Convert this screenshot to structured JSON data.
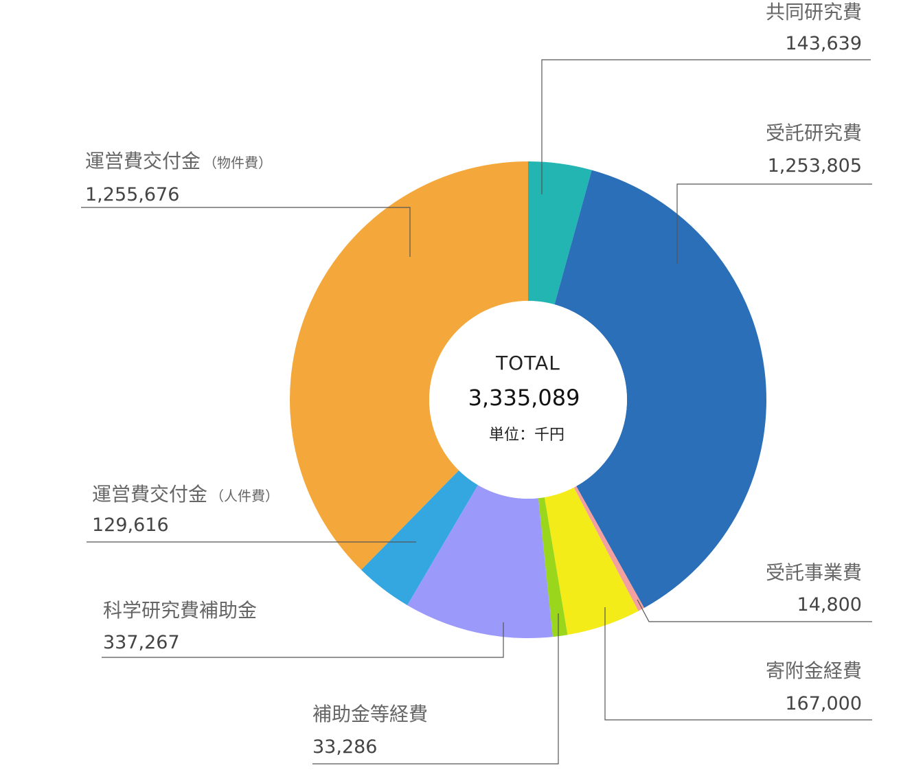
{
  "chart_data": {
    "type": "pie",
    "donut": true,
    "center": {
      "title": "TOTAL",
      "total": "3,335,089",
      "unit": "単位：千円"
    },
    "slices": [
      {
        "name": "共同研究費",
        "value": 143639,
        "value_label": "143,639",
        "color": "#22b5b2"
      },
      {
        "name": "受託研究費",
        "value": 1253805,
        "value_label": "1,253,805",
        "color": "#2a6fb8"
      },
      {
        "name": "受託事業費",
        "value": 14800,
        "value_label": "14,800",
        "color": "#f4a0a0"
      },
      {
        "name": "寄附金経費",
        "value": 167000,
        "value_label": "167,000",
        "color": "#f4ec18"
      },
      {
        "name": "補助金等経費",
        "value": 33286,
        "value_label": "33,286",
        "color": "#99d61c"
      },
      {
        "name": "科学研究費補助金",
        "value": 337267,
        "value_label": "337,267",
        "color": "#9b9afb"
      },
      {
        "name": "運営費交付金",
        "name_suffix": "（人件費）",
        "value": 129616,
        "value_label": "129,616",
        "color": "#34a6e0"
      },
      {
        "name": "運営費交付金",
        "name_suffix": "（物件費）",
        "value": 1255676,
        "value_label": "1,255,676",
        "color": "#f4a83c"
      }
    ]
  }
}
